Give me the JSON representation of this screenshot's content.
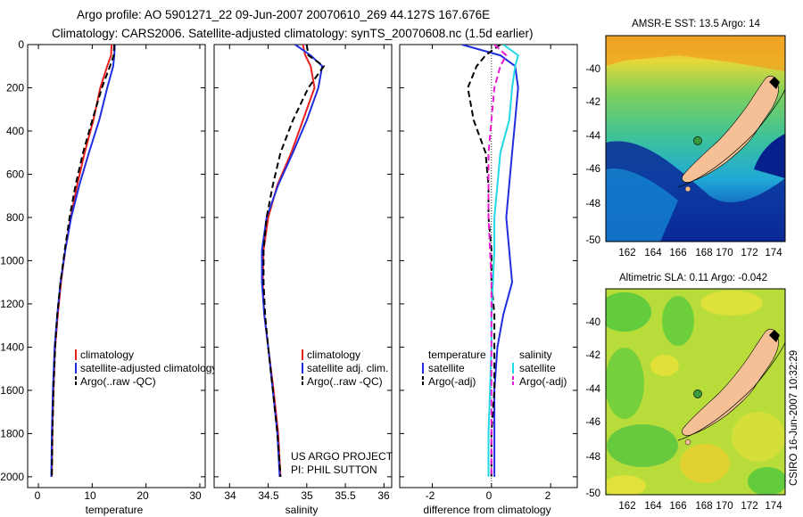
{
  "title": {
    "line1": "Argo profile: AO 5901271_22 09-Jun-2007 20070610_269 44.127S 167.676E",
    "line2": "Climatology: CARS2006. Satellite-adjusted climatology: synTS_20070608.nc (1.5d earlier)"
  },
  "colors": {
    "climatology": "#e8201e",
    "satellite": "#1f2ee0",
    "argo": "#000000",
    "salinity_sat": "#21d8e6",
    "salinity_argo": "#e81bd2",
    "land": "#f5c096"
  },
  "credit": "CSIRO 16-Jun-2007 10:32:29",
  "project": [
    "US ARGO PROJECT",
    "PI: PHIL SUTTON"
  ],
  "chart_data": [
    {
      "type": "line",
      "panel": "temperature",
      "xlabel": "temperature",
      "xlim": [
        -2,
        31
      ],
      "ylim": [
        2050,
        0
      ],
      "x_ticks": [
        "0",
        "10",
        "20",
        "30"
      ],
      "y_ticks": [
        "0",
        "200",
        "400",
        "600",
        "800",
        "1000",
        "1200",
        "1400",
        "1600",
        "1800",
        "2000"
      ],
      "legend": [
        "climatology",
        "satellite-adjusted climatology",
        "Argo(..raw -QC)"
      ],
      "series": [
        {
          "name": "climatology",
          "x": [
            13.6,
            13.5,
            12.8,
            11.5,
            10.2,
            8.6,
            7.2,
            6.0,
            5.0,
            4.2,
            3.6,
            3.1,
            2.8,
            2.6,
            2.5
          ],
          "y": [
            0,
            50,
            100,
            200,
            350,
            500,
            650,
            800,
            950,
            1100,
            1250,
            1400,
            1600,
            1800,
            2000
          ]
        },
        {
          "name": "satellite-adjusted climatology",
          "x": [
            14.2,
            14.1,
            13.9,
            12.8,
            11.3,
            9.4,
            7.6,
            6.1,
            5.0,
            4.1,
            3.5,
            3.0,
            2.7,
            2.5,
            2.4
          ],
          "y": [
            0,
            50,
            100,
            200,
            350,
            500,
            650,
            800,
            950,
            1100,
            1250,
            1400,
            1600,
            1800,
            2000
          ]
        },
        {
          "name": "Argo(..raw -QC)",
          "x": [
            14.1,
            14.0,
            13.3,
            11.8,
            10.0,
            8.3,
            6.9,
            5.8,
            4.9,
            4.1,
            3.5,
            3.1,
            2.8,
            2.6,
            2.5
          ],
          "y": [
            0,
            50,
            100,
            200,
            350,
            500,
            650,
            800,
            950,
            1100,
            1250,
            1400,
            1600,
            1800,
            2000
          ]
        }
      ]
    },
    {
      "type": "line",
      "panel": "salinity",
      "xlabel": "salinity",
      "xlim": [
        33.8,
        36.1
      ],
      "ylim": [
        2050,
        0
      ],
      "x_ticks": [
        "34",
        "34.5",
        "35",
        "35.5",
        "36"
      ],
      "legend": [
        "climatology",
        "satellite adj. clim.",
        "Argo(..raw -QC)"
      ],
      "series": [
        {
          "name": "climatology",
          "x": [
            34.95,
            34.98,
            35.05,
            35.1,
            34.95,
            34.8,
            34.62,
            34.5,
            34.44,
            34.43,
            34.45,
            34.5,
            34.57,
            34.63,
            34.66
          ],
          "y": [
            0,
            50,
            100,
            200,
            350,
            500,
            650,
            800,
            950,
            1100,
            1250,
            1400,
            1600,
            1800,
            2000
          ]
        },
        {
          "name": "satellite adj. clim.",
          "x": [
            34.85,
            35.05,
            35.2,
            35.15,
            35.0,
            34.82,
            34.63,
            34.48,
            34.42,
            34.42,
            34.45,
            34.5,
            34.56,
            34.62,
            34.65
          ],
          "y": [
            0,
            50,
            100,
            200,
            350,
            500,
            650,
            800,
            950,
            1100,
            1250,
            1400,
            1600,
            1800,
            2000
          ]
        },
        {
          "name": "Argo(..raw -QC)",
          "x": [
            35.0,
            35.02,
            35.22,
            35.02,
            34.82,
            34.66,
            34.56,
            34.48,
            34.44,
            34.44,
            34.46,
            34.5,
            34.56,
            34.62,
            34.66
          ],
          "y": [
            0,
            50,
            100,
            200,
            350,
            500,
            650,
            800,
            950,
            1100,
            1250,
            1400,
            1600,
            1800,
            2000
          ]
        }
      ]
    },
    {
      "type": "line",
      "panel": "difference",
      "xlabel": "difference from climatology",
      "xlim": [
        -3.1,
        2.9
      ],
      "ylim": [
        2050,
        0
      ],
      "x_ticks": [
        "-2",
        "0",
        "2"
      ],
      "legend_headers": [
        "temperature",
        "salinity"
      ],
      "legend": [
        "satellite",
        "Argo(-adj)",
        "satellite",
        "Argo(-adj)"
      ],
      "series": [
        {
          "name": "satellite",
          "group": "temperature",
          "x": [
            -1.0,
            0.3,
            0.8,
            0.9,
            0.8,
            0.7,
            0.6,
            0.5,
            0.6,
            0.7,
            0.4,
            0.2,
            0.1,
            0.1,
            0.1
          ],
          "y": [
            0,
            50,
            100,
            200,
            350,
            500,
            650,
            800,
            950,
            1100,
            1250,
            1400,
            1600,
            1800,
            2000
          ]
        },
        {
          "name": "Argo(-adj)",
          "group": "temperature",
          "x": [
            0.3,
            -0.2,
            -0.5,
            -0.8,
            -0.6,
            -0.2,
            -0.1,
            -0.1,
            0.0,
            0.0,
            0.1,
            0.1,
            0.1,
            0.0,
            0.0
          ],
          "y": [
            0,
            50,
            100,
            200,
            350,
            500,
            650,
            800,
            950,
            1100,
            1250,
            1400,
            1600,
            1800,
            2000
          ]
        },
        {
          "name": "satellite",
          "group": "salinity",
          "x": [
            0.4,
            0.9,
            0.8,
            0.7,
            0.6,
            0.3,
            0.2,
            0.1,
            0.1,
            0.05,
            0.0,
            0.0,
            -0.05,
            -0.1,
            -0.1
          ],
          "y": [
            0,
            50,
            100,
            200,
            350,
            500,
            650,
            800,
            950,
            1100,
            1250,
            1400,
            1600,
            1800,
            2000
          ]
        },
        {
          "name": "Argo(-adj)",
          "group": "salinity",
          "x": [
            0.1,
            0.5,
            0.3,
            0.1,
            0.0,
            -0.1,
            -0.1,
            -0.1,
            -0.05,
            0.0,
            0.0,
            0.0,
            0.0,
            0.0,
            0.0
          ],
          "y": [
            0,
            50,
            100,
            200,
            350,
            500,
            650,
            800,
            950,
            1100,
            1250,
            1400,
            1600,
            1800,
            2000
          ]
        }
      ]
    },
    {
      "type": "heatmap",
      "panel": "map-sst",
      "title": "AMSR-E SST: 13.5 Argo: 14",
      "x_ticks": [
        "162",
        "164",
        "166",
        "168",
        "170",
        "172",
        "174"
      ],
      "y_ticks": [
        "-40",
        "-42",
        "-44",
        "-46",
        "-48",
        "-50"
      ],
      "xlim": [
        160.5,
        174.5
      ],
      "ylim": [
        -50.2,
        -37.8
      ],
      "argo_position": [
        167.676,
        -44.127
      ]
    },
    {
      "type": "heatmap",
      "panel": "map-sla",
      "title": "Altimetric SLA: 0.11 Argo: -0.042",
      "x_ticks": [
        "162",
        "164",
        "166",
        "168",
        "170",
        "172",
        "174"
      ],
      "y_ticks": [
        "-40",
        "-42",
        "-44",
        "-46",
        "-48",
        "-50"
      ],
      "xlim": [
        160.5,
        174.5
      ],
      "ylim": [
        -50.2,
        -37.8
      ],
      "argo_position": [
        167.676,
        -44.127
      ]
    }
  ]
}
